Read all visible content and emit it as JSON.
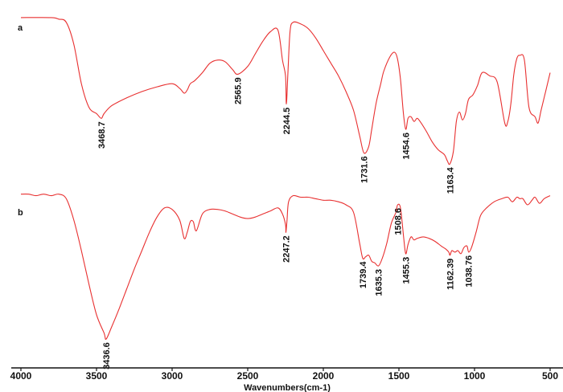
{
  "chart_data": {
    "type": "line",
    "title": "",
    "xlabel": "Wavenumbers(cm-1)",
    "ylabel": "",
    "xlim": [
      4000,
      500
    ],
    "x_reversed": true,
    "x_ticks": [
      4000,
      3500,
      3000,
      2500,
      2000,
      1500,
      1000,
      500
    ],
    "grid": false,
    "legend": "none",
    "line_color": "#e83030",
    "series": [
      {
        "name": "a",
        "peak_labels": [
          "3468.7",
          "2565.9",
          "2244.5",
          "1731.6",
          "1454.6",
          "1163.4"
        ],
        "x": [
          4000,
          3800,
          3750,
          3700,
          3650,
          3600,
          3550,
          3500,
          3468.7,
          3450,
          3400,
          3300,
          3200,
          3100,
          3000,
          2950,
          2920,
          2900,
          2880,
          2850,
          2800,
          2750,
          2700,
          2650,
          2600,
          2565.9,
          2500,
          2450,
          2400,
          2350,
          2300,
          2270,
          2250,
          2244.5,
          2235,
          2220,
          2200,
          2150,
          2100,
          2050,
          2000,
          1950,
          1900,
          1850,
          1800,
          1760,
          1731.6,
          1700,
          1680,
          1650,
          1620,
          1600,
          1560,
          1530,
          1510,
          1490,
          1470,
          1454.6,
          1440,
          1420,
          1400,
          1380,
          1360,
          1320,
          1280,
          1240,
          1200,
          1180,
          1163.4,
          1140,
          1120,
          1100,
          1080,
          1060,
          1040,
          1010,
          980,
          950,
          900,
          850,
          800,
          780,
          760,
          740,
          720,
          700,
          670,
          640,
          600,
          580,
          560,
          530,
          500
        ],
        "y": [
          97,
          97,
          96,
          94,
          80,
          55,
          40,
          36,
          33,
          36,
          41,
          46,
          50,
          53,
          55,
          52,
          49,
          51,
          55,
          57,
          62,
          68,
          70,
          69,
          64,
          61,
          66,
          74,
          82,
          88,
          89,
          70,
          60,
          42,
          60,
          88,
          94,
          93,
          90,
          84,
          76,
          68,
          60,
          50,
          38,
          22,
          11,
          15,
          26,
          43,
          55,
          63,
          72,
          75,
          71,
          58,
          36,
          26,
          33,
          34,
          31,
          33,
          31,
          25,
          18,
          13,
          10,
          6,
          4,
          12,
          31,
          37,
          32,
          36,
          45,
          48,
          54,
          62,
          60,
          56,
          30,
          31,
          42,
          61,
          71,
          73,
          70,
          40,
          34,
          30,
          38,
          50,
          62
        ]
      },
      {
        "name": "b",
        "peak_labels": [
          "3436.6",
          "2247.2",
          "1739.4",
          "1635.3",
          "1508.6",
          "1455.3",
          "1162.39",
          "1038.76"
        ],
        "x": [
          4000,
          3950,
          3900,
          3850,
          3800,
          3750,
          3700,
          3650,
          3600,
          3550,
          3500,
          3450,
          3436.6,
          3400,
          3350,
          3300,
          3250,
          3200,
          3150,
          3100,
          3050,
          3000,
          2950,
          2920,
          2900,
          2880,
          2860,
          2840,
          2800,
          2750,
          2700,
          2650,
          2600,
          2550,
          2500,
          2450,
          2400,
          2350,
          2300,
          2270,
          2250,
          2247.2,
          2240,
          2230,
          2200,
          2150,
          2100,
          2050,
          2000,
          1950,
          1900,
          1850,
          1800,
          1760,
          1739.4,
          1720,
          1700,
          1680,
          1660,
          1635.3,
          1610,
          1580,
          1550,
          1520,
          1508.6,
          1490,
          1470,
          1455.3,
          1440,
          1420,
          1400,
          1380,
          1340,
          1300,
          1260,
          1220,
          1190,
          1170,
          1162.39,
          1150,
          1130,
          1110,
          1090,
          1070,
          1050,
          1038.76,
          1020,
          990,
          960,
          920,
          870,
          820,
          780,
          750,
          720,
          700,
          680,
          650,
          620,
          600,
          570,
          540,
          500
        ],
        "y": [
          97,
          97,
          96,
          97,
          96,
          97,
          94,
          80,
          60,
          38,
          18,
          6,
          2,
          10,
          22,
          35,
          48,
          60,
          72,
          82,
          88,
          87,
          80,
          68,
          72,
          79,
          79,
          73,
          84,
          87,
          87,
          86,
          84,
          82,
          81,
          82,
          84,
          86,
          88,
          84,
          77,
          72,
          80,
          92,
          96,
          95,
          95,
          94,
          93,
          93,
          92,
          90,
          85,
          65,
          55,
          56,
          57,
          53,
          52,
          50,
          55,
          65,
          78,
          85,
          90,
          88,
          70,
          58,
          64,
          69,
          67,
          68,
          69,
          68,
          66,
          63,
          61,
          59,
          57,
          60,
          59,
          60,
          58,
          62,
          63,
          59,
          62,
          72,
          83,
          88,
          92,
          94,
          95,
          92,
          95,
          94,
          94,
          90,
          93,
          95,
          91,
          94,
          96
        ]
      }
    ]
  }
}
